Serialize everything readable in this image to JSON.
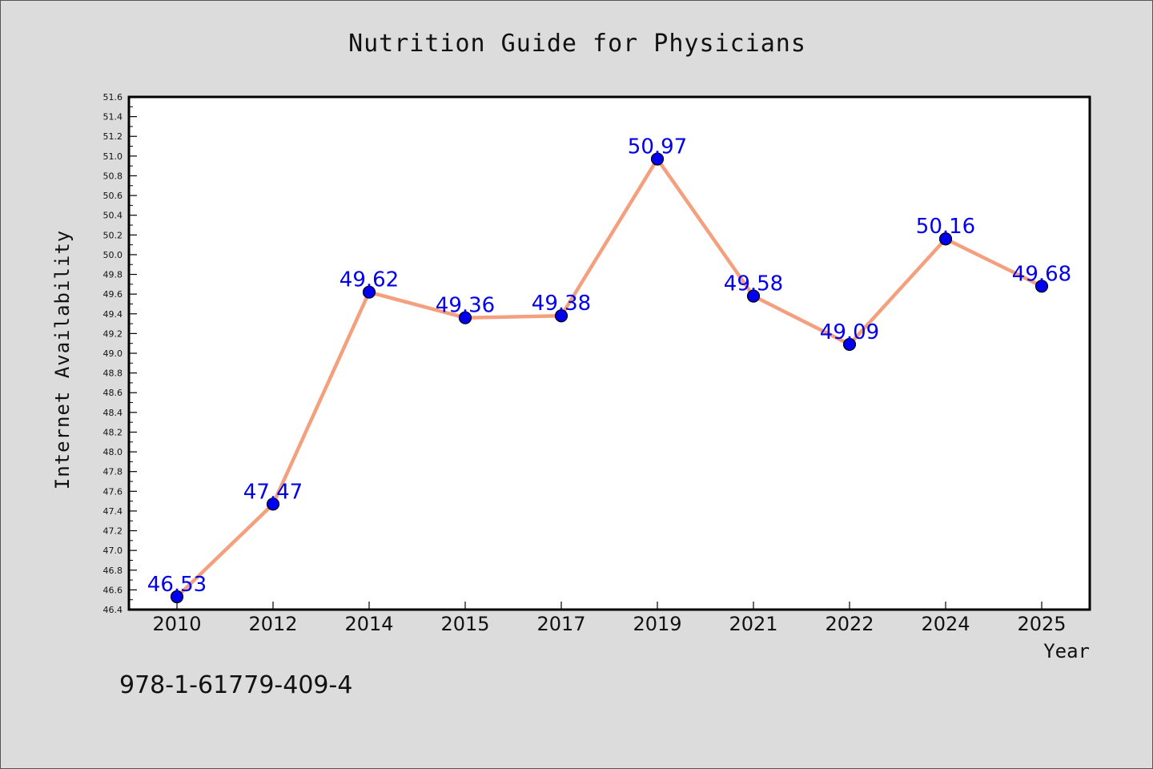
{
  "chart_data": {
    "type": "line",
    "title": "Nutrition Guide for Physicians",
    "xlabel": "Year",
    "ylabel": "Internet Availability",
    "categories": [
      "2010",
      "2012",
      "2014",
      "2015",
      "2017",
      "2019",
      "2021",
      "2022",
      "2024",
      "2025"
    ],
    "series": [
      {
        "values": [
          46.53,
          47.47,
          49.62,
          49.36,
          49.38,
          50.97,
          49.58,
          49.09,
          50.16,
          49.68
        ],
        "data_labels": [
          "46.53",
          "47.47",
          "49.62",
          "49.36",
          "49.38",
          "50.97",
          "49.58",
          "49.09",
          "50.16",
          "49.68"
        ]
      }
    ],
    "ylim": [
      46.4,
      51.6
    ],
    "y_ticks": [
      "46.4",
      "46.6",
      "46.8",
      "47.0",
      "47.2",
      "47.4",
      "47.6",
      "47.8",
      "48.0",
      "48.2",
      "48.4",
      "48.6",
      "48.8",
      "49.0",
      "49.2",
      "49.4",
      "49.6",
      "49.8",
      "50.0",
      "50.2",
      "50.4",
      "50.6",
      "50.8",
      "51.0",
      "51.2",
      "51.4",
      "51.6"
    ],
    "grid": false,
    "line_color": "#f4a07e",
    "marker_color": "#0000ee",
    "label_color": "#0000ee"
  },
  "footer_text": "978-1-61779-409-4"
}
